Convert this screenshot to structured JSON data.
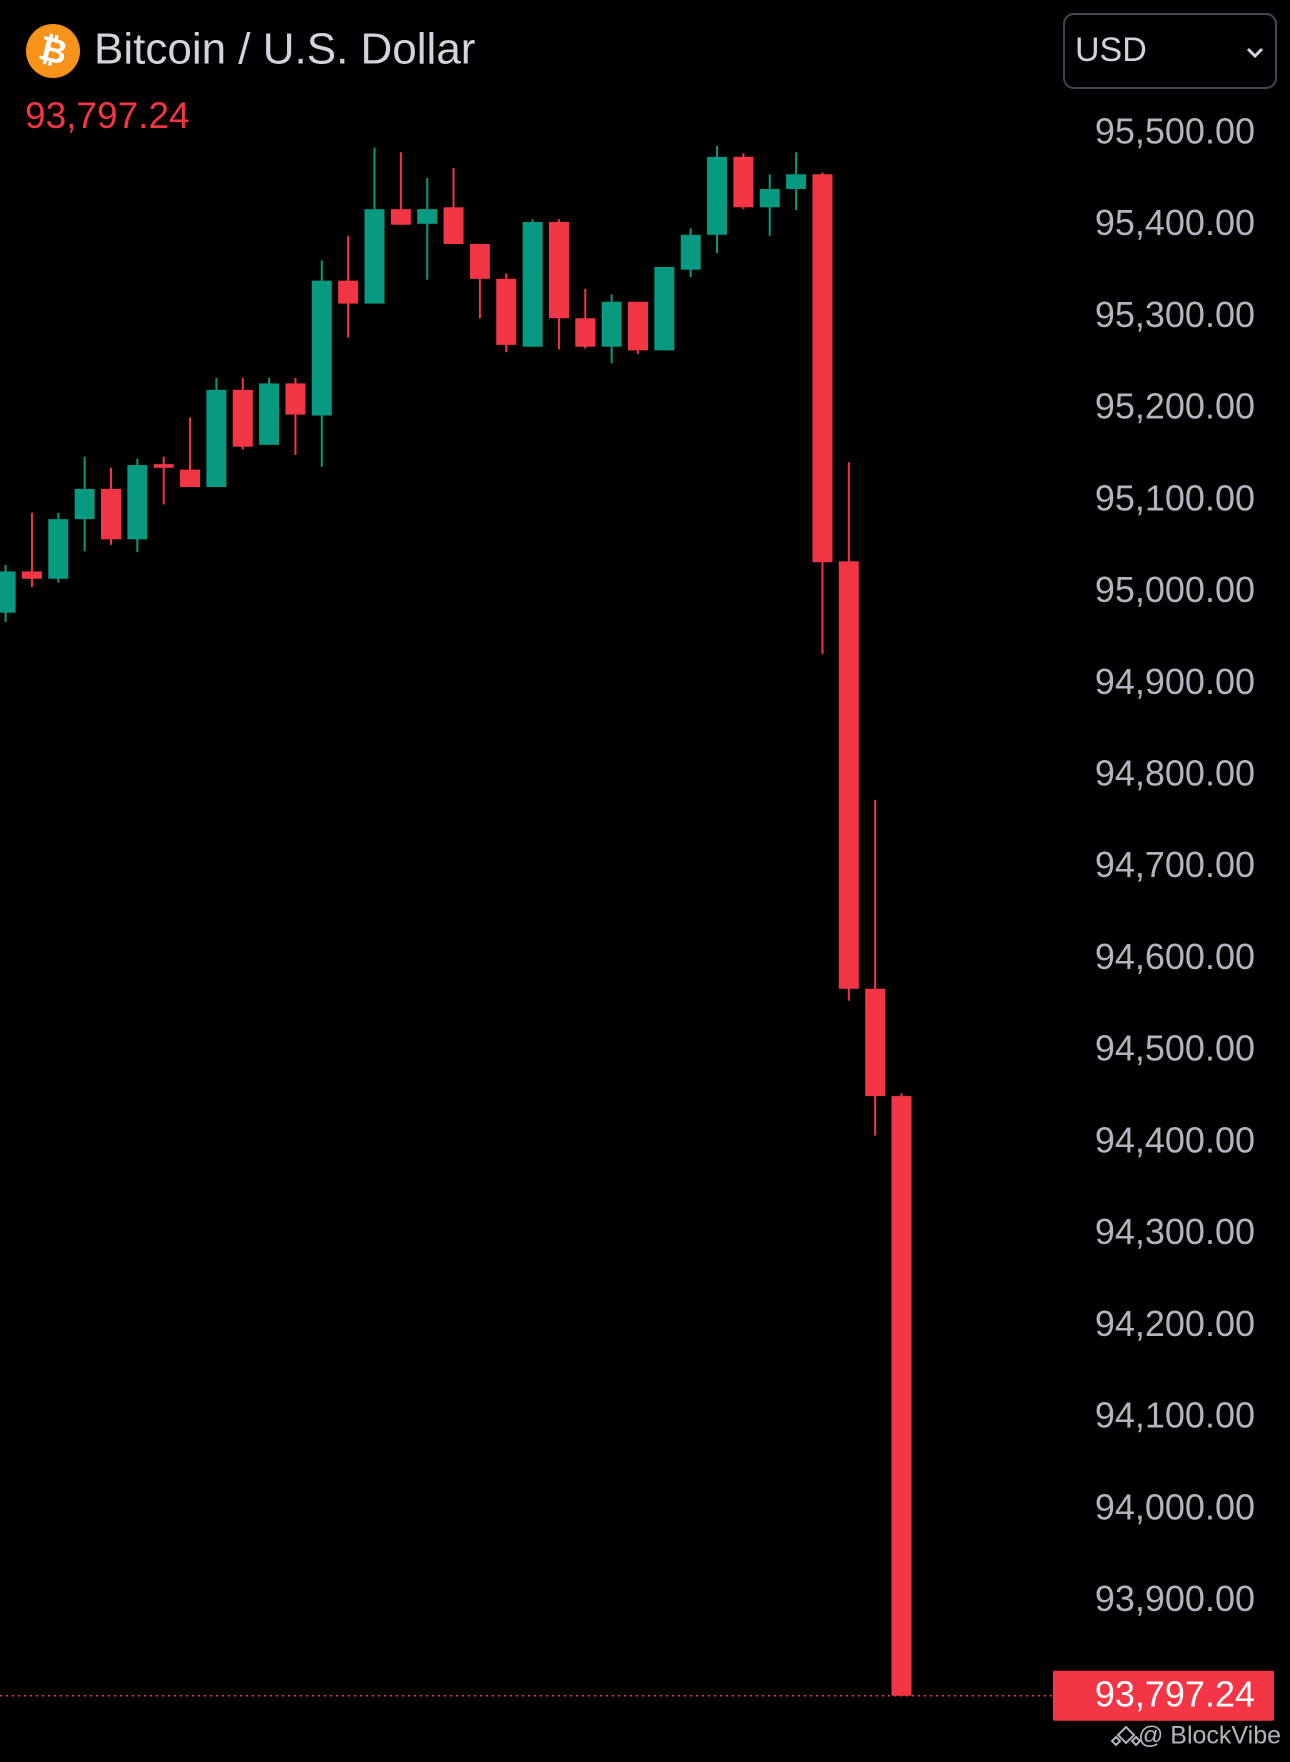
{
  "header": {
    "icon": "₿",
    "title": "Bitcoin / U.S. Dollar",
    "currency": "USD"
  },
  "watermark": "@ BlockVibe",
  "chart_data": {
    "type": "candlestick",
    "up_color": "#089981",
    "down_color": "#f23645",
    "last_price": {
      "value": 93797.24,
      "label": "93,797.24"
    },
    "ylim": [
      93725,
      95646
    ],
    "yticks": [
      {
        "value": 95500,
        "label": "95,500.00"
      },
      {
        "value": 95400,
        "label": "95,400.00"
      },
      {
        "value": 95300,
        "label": "95,300.00"
      },
      {
        "value": 95200,
        "label": "95,200.00"
      },
      {
        "value": 95100,
        "label": "95,100.00"
      },
      {
        "value": 95000,
        "label": "95,000.00"
      },
      {
        "value": 94900,
        "label": "94,900.00"
      },
      {
        "value": 94800,
        "label": "94,800.00"
      },
      {
        "value": 94700,
        "label": "94,700.00"
      },
      {
        "value": 94600,
        "label": "94,600.00"
      },
      {
        "value": 94500,
        "label": "94,500.00"
      },
      {
        "value": 94400,
        "label": "94,400.00"
      },
      {
        "value": 94300,
        "label": "94,300.00"
      },
      {
        "value": 94200,
        "label": "94,200.00"
      },
      {
        "value": 94100,
        "label": "94,100.00"
      },
      {
        "value": 94000,
        "label": "94,000.00"
      },
      {
        "value": 93900,
        "label": "93,900.00"
      }
    ],
    "open": [
      94978,
      95023,
      95015,
      95080,
      95113,
      95058,
      95140,
      95134,
      95115,
      95221,
      95161,
      95228,
      95193,
      95340,
      95315,
      95418,
      95402,
      95420,
      95380,
      95342,
      95268,
      95404,
      95299,
      95268,
      95317,
      95264,
      95352,
      95390,
      95475,
      95420,
      95440,
      95456,
      95034,
      94568,
      94451
    ],
    "high": [
      95030,
      95087,
      95087,
      95148,
      95136,
      95146,
      95148,
      95191,
      95234,
      95234,
      95234,
      95234,
      95362,
      95389,
      95485,
      95480,
      95452,
      95463,
      95380,
      95348,
      95407,
      95407,
      95331,
      95325,
      95317,
      95355,
      95397,
      95487,
      95479,
      95456,
      95480,
      95458,
      95142,
      94774,
      94454
    ],
    "low": [
      94968,
      95006,
      95011,
      95045,
      95052,
      95044,
      95096,
      95115,
      95115,
      95156,
      95161,
      95150,
      95137,
      95278,
      95315,
      95401,
      95341,
      95380,
      95299,
      95262,
      95268,
      95265,
      95266,
      95250,
      95260,
      95264,
      95344,
      95370,
      95418,
      95389,
      95417,
      94933,
      94555,
      94408,
      93797.24
    ],
    "close": [
      95023,
      95015,
      95080,
      95113,
      95058,
      95139,
      95136,
      95115,
      95221,
      95159,
      95228,
      95194,
      95340,
      95315,
      95418,
      95401,
      95418,
      95380,
      95342,
      95270,
      95404,
      95299,
      95268,
      95317,
      95264,
      95355,
      95390,
      95475,
      95420,
      95440,
      95456,
      95033,
      94568,
      94451,
      93797.24
    ]
  }
}
